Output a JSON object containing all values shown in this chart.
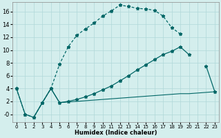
{
  "xlabel": "Humidex (Indice chaleur)",
  "bg_color": "#d4eeed",
  "line_color": "#006666",
  "grid_color": "#b0d8d8",
  "xlim": [
    -0.5,
    23.5
  ],
  "ylim": [
    -1.2,
    17.5
  ],
  "xticks": [
    0,
    1,
    2,
    3,
    4,
    5,
    6,
    7,
    8,
    9,
    10,
    11,
    12,
    13,
    14,
    15,
    16,
    17,
    18,
    19,
    20,
    21,
    22,
    23
  ],
  "yticks": [
    0,
    2,
    4,
    6,
    8,
    10,
    12,
    14,
    16
  ],
  "ytick_labels": [
    "-0",
    "2",
    "4",
    "6",
    "8",
    "10",
    "12",
    "14",
    "16"
  ],
  "curve1_x": [
    0,
    1,
    2,
    3,
    4,
    5,
    6,
    7,
    8,
    9,
    10,
    11,
    12,
    13,
    14,
    15,
    16,
    17,
    18,
    19
  ],
  "curve1_y": [
    4.0,
    0.0,
    -0.5,
    1.8,
    4.0,
    7.8,
    10.5,
    12.3,
    13.3,
    14.2,
    15.3,
    16.1,
    17.0,
    16.8,
    16.5,
    16.4,
    16.2,
    15.3,
    13.5,
    12.5
  ],
  "curve2_x": [
    0,
    1,
    2,
    3,
    4,
    5,
    6,
    7,
    8,
    9,
    10,
    11,
    12,
    13,
    14,
    15,
    16,
    17,
    18,
    19,
    20,
    21,
    22,
    23
  ],
  "curve2_y": [
    4.0,
    0.0,
    -0.5,
    1.8,
    4.0,
    1.8,
    2.0,
    2.3,
    2.7,
    3.2,
    3.8,
    4.4,
    5.2,
    6.0,
    6.9,
    7.7,
    8.5,
    9.3,
    9.8,
    10.5,
    9.3,
    null,
    7.5,
    3.5
  ],
  "curve3_x": [
    2,
    3,
    4,
    5,
    6,
    7,
    8,
    9,
    10,
    11,
    12,
    13,
    14,
    15,
    16,
    17,
    18,
    19,
    20,
    21,
    22,
    23
  ],
  "curve3_y": [
    -0.5,
    1.8,
    4.0,
    1.8,
    1.9,
    2.0,
    2.1,
    2.2,
    2.3,
    2.4,
    2.5,
    2.6,
    2.7,
    2.8,
    2.9,
    3.0,
    3.1,
    3.2,
    3.2,
    3.3,
    3.4,
    3.5
  ]
}
